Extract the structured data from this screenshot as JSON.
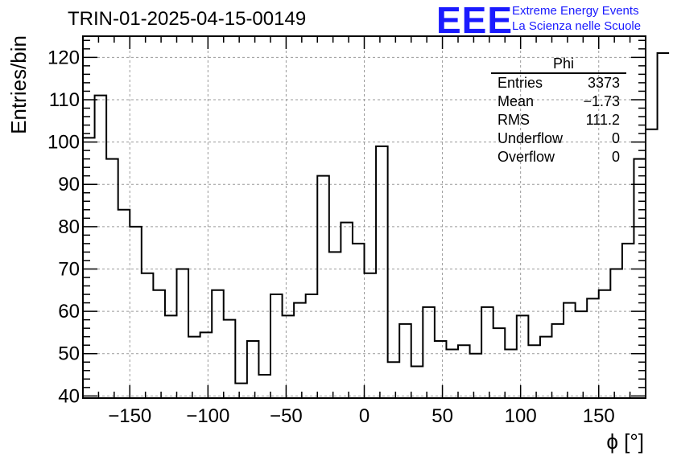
{
  "title": "TRIN-01-2025-04-15-00149",
  "logo": {
    "mark": "EEE",
    "line1": "Extreme Energy Events",
    "line2": "La Scienza nelle Scuole",
    "color": "#1a1aff"
  },
  "stats": {
    "name": "Phi",
    "rows": [
      {
        "label": "Entries",
        "value": "3373"
      },
      {
        "label": "Mean",
        "value": "−1.73"
      },
      {
        "label": "RMS",
        "value": "111.2"
      },
      {
        "label": "Underflow",
        "value": "0"
      },
      {
        "label": "Overflow",
        "value": "0"
      }
    ]
  },
  "chart_data": {
    "type": "bar",
    "style": "step-histogram",
    "xlabel": "ϕ [°]",
    "ylabel": "Entries/bin",
    "xlim": [
      -180,
      180
    ],
    "ylim": [
      39.5,
      125
    ],
    "grid": true,
    "bin_width": 7.5,
    "bin_start": -180,
    "values": [
      101,
      111,
      96,
      84,
      80,
      69,
      65,
      59,
      70,
      54,
      55,
      65,
      58,
      43,
      53,
      45,
      64,
      59,
      62,
      64,
      92,
      74,
      81,
      76,
      69,
      99,
      48,
      57,
      47,
      61,
      53,
      51,
      52,
      50,
      61,
      56,
      51,
      59,
      52,
      54,
      57,
      62,
      60,
      63,
      65,
      70,
      76,
      96,
      103,
      121
    ],
    "x_ticks": [
      -150,
      -100,
      -50,
      0,
      50,
      100,
      150
    ],
    "x_tick_labels": [
      "−150",
      "−100",
      "−50",
      "0",
      "50",
      "100",
      "150"
    ],
    "y_ticks": [
      40,
      50,
      60,
      70,
      80,
      90,
      100,
      110,
      120
    ],
    "y_tick_labels": [
      "40",
      "50",
      "60",
      "70",
      "80",
      "90",
      "100",
      "110",
      "120"
    ]
  }
}
